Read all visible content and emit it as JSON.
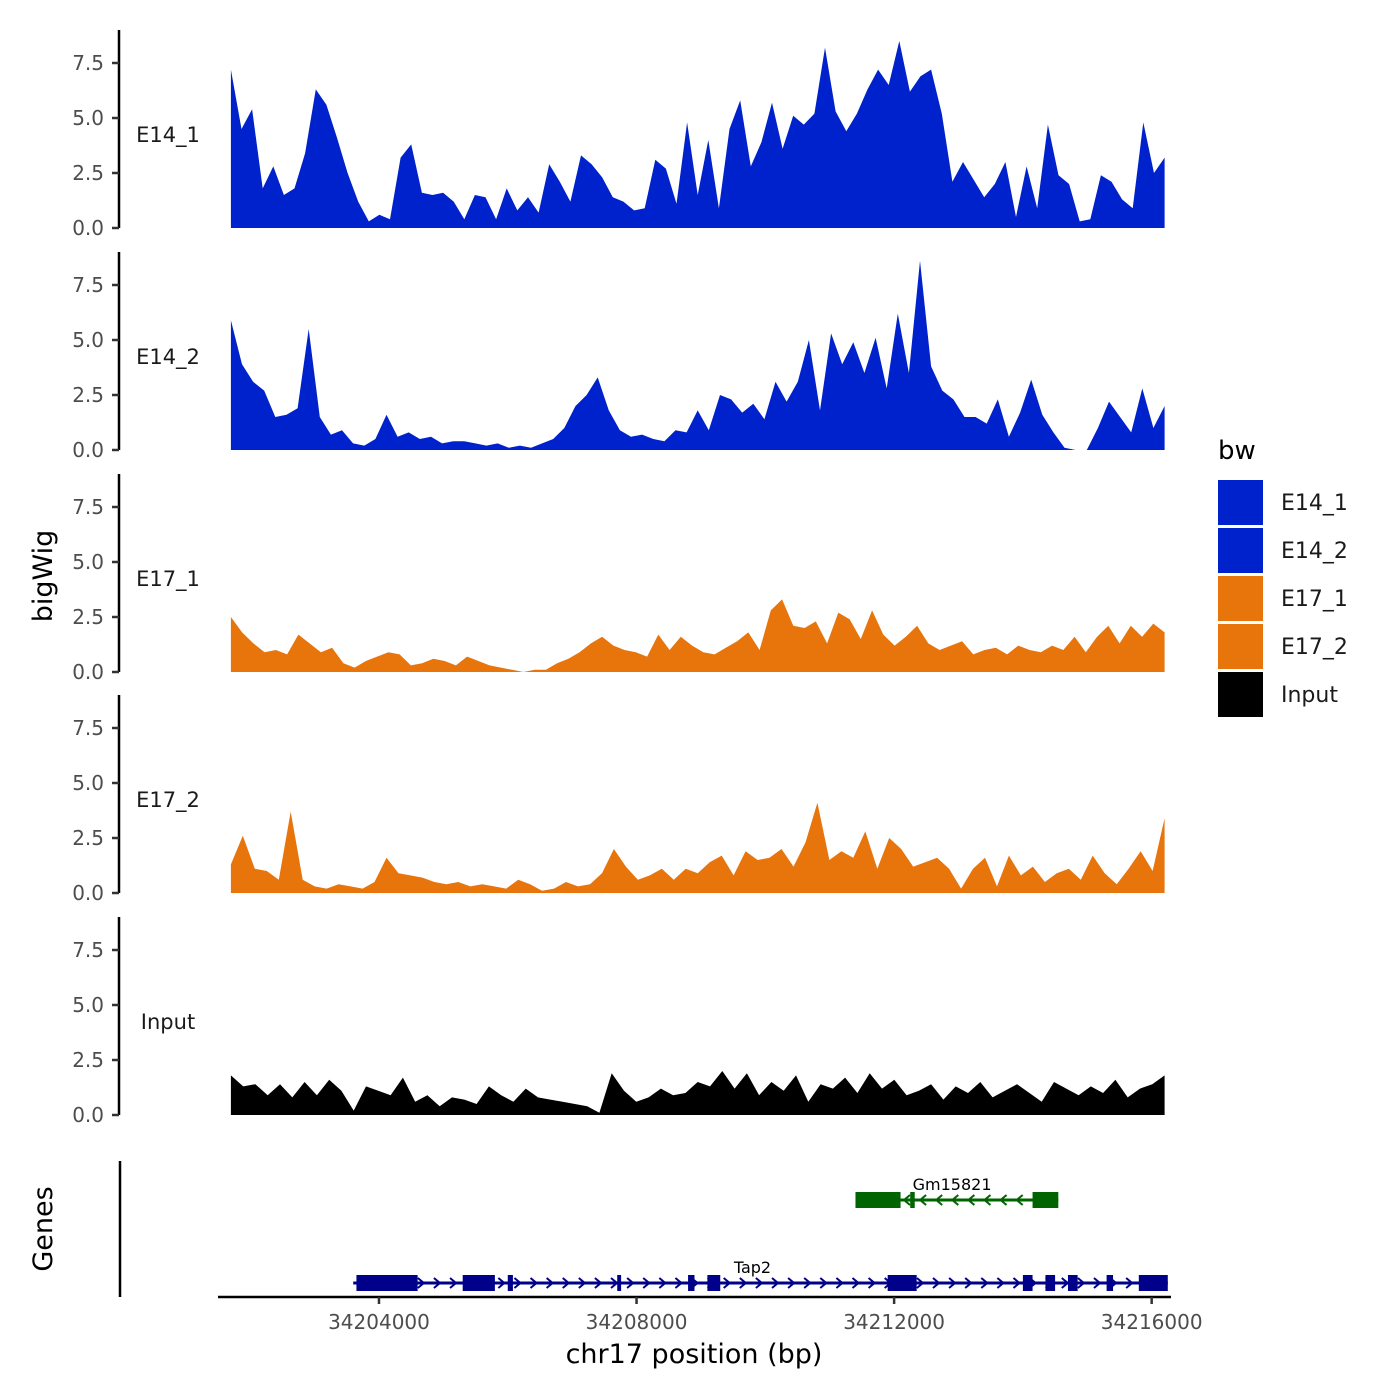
{
  "chart_data": {
    "type": "area",
    "title": "",
    "ylabel": "bigWig",
    "xlabel": "chr17 position (bp)",
    "genes_label": "Genes",
    "xlim": [
      34201500,
      34216300
    ],
    "ylim": [
      0,
      9
    ],
    "x_ticks": [
      34204000,
      34208000,
      34212000,
      34216000
    ],
    "x_tick_labels": [
      "34204000",
      "34208000",
      "34212000",
      "34216000"
    ],
    "y_ticks": [
      0,
      2.5,
      5,
      7.5
    ],
    "y_tick_labels": [
      "0.0",
      "2.5",
      "5.0",
      "7.5"
    ],
    "legend": {
      "title": "bw",
      "position": "right",
      "entries": [
        {
          "label": "E14_1",
          "color": "#0022CC"
        },
        {
          "label": "E14_2",
          "color": "#0022CC"
        },
        {
          "label": "E17_1",
          "color": "#E8740C"
        },
        {
          "label": "E17_2",
          "color": "#E8740C"
        },
        {
          "label": "Input",
          "color": "#000000"
        }
      ]
    },
    "x_start": 34201700,
    "x_step": 200,
    "series": [
      {
        "name": "E14_1",
        "color": "#0022CC",
        "values": [
          7.2,
          4.5,
          5.4,
          1.8,
          2.8,
          1.5,
          1.8,
          3.4,
          6.3,
          5.6,
          4.1,
          2.5,
          1.2,
          0.3,
          0.6,
          0.4,
          3.2,
          3.8,
          1.6,
          1.5,
          1.6,
          1.2,
          0.4,
          1.5,
          1.4,
          0.4,
          1.8,
          0.8,
          1.4,
          0.7,
          2.9,
          2.1,
          1.2,
          3.3,
          2.9,
          2.3,
          1.4,
          1.2,
          0.8,
          0.9,
          3.1,
          2.7,
          1.1,
          4.8,
          1.5,
          4.0,
          0.9,
          4.5,
          5.8,
          2.8,
          3.9,
          5.7,
          3.6,
          5.1,
          4.7,
          5.2,
          8.2,
          5.3,
          4.4,
          5.2,
          6.3,
          7.2,
          6.5,
          8.5,
          6.2,
          6.9,
          7.2,
          5.2,
          2.1,
          3.0,
          2.2,
          1.4,
          2.0,
          3.0,
          0.5,
          2.8,
          0.9,
          4.7,
          2.4,
          2.0,
          0.3,
          0.4,
          2.4,
          2.1,
          1.3,
          0.9,
          4.8,
          2.5,
          3.2
        ]
      },
      {
        "name": "E14_2",
        "color": "#0022CC",
        "values": [
          5.9,
          3.9,
          3.1,
          2.7,
          1.5,
          1.6,
          1.9,
          5.5,
          1.5,
          0.7,
          0.9,
          0.3,
          0.2,
          0.5,
          1.6,
          0.6,
          0.8,
          0.5,
          0.6,
          0.3,
          0.4,
          0.4,
          0.3,
          0.2,
          0.3,
          0.1,
          0.2,
          0.1,
          0.3,
          0.5,
          1.0,
          2.0,
          2.5,
          3.3,
          1.8,
          0.9,
          0.6,
          0.7,
          0.5,
          0.4,
          0.9,
          0.8,
          1.8,
          0.9,
          2.5,
          2.3,
          1.7,
          2.1,
          1.4,
          3.1,
          2.2,
          3.1,
          5.0,
          1.8,
          5.3,
          3.9,
          4.9,
          3.5,
          5.1,
          2.8,
          6.2,
          3.5,
          8.6,
          3.8,
          2.7,
          2.3,
          1.5,
          1.5,
          1.2,
          2.3,
          0.6,
          1.7,
          3.2,
          1.6,
          0.8,
          0.1,
          0.0,
          0.0,
          1.0,
          2.2,
          1.5,
          0.8,
          2.8,
          1.0,
          2.0
        ]
      },
      {
        "name": "E17_1",
        "color": "#E8740C",
        "values": [
          2.5,
          1.8,
          1.3,
          0.9,
          1.0,
          0.8,
          1.7,
          1.3,
          0.9,
          1.1,
          0.4,
          0.2,
          0.5,
          0.7,
          0.9,
          0.8,
          0.3,
          0.4,
          0.6,
          0.5,
          0.3,
          0.7,
          0.5,
          0.3,
          0.2,
          0.1,
          0.0,
          0.1,
          0.1,
          0.4,
          0.6,
          0.9,
          1.3,
          1.6,
          1.2,
          1.0,
          0.9,
          0.7,
          1.7,
          1.0,
          1.6,
          1.2,
          0.9,
          0.8,
          1.1,
          1.4,
          1.8,
          1.0,
          2.8,
          3.3,
          2.1,
          2.0,
          2.3,
          1.3,
          2.7,
          2.4,
          1.5,
          2.8,
          1.7,
          1.2,
          1.6,
          2.1,
          1.3,
          1.0,
          1.2,
          1.4,
          0.8,
          1.0,
          1.1,
          0.8,
          1.2,
          1.0,
          0.9,
          1.2,
          1.0,
          1.6,
          0.9,
          1.6,
          2.1,
          1.3,
          2.1,
          1.6,
          2.2,
          1.8
        ]
      },
      {
        "name": "E17_2",
        "color": "#E8740C",
        "values": [
          1.3,
          2.6,
          1.1,
          1.0,
          0.6,
          3.7,
          0.6,
          0.3,
          0.2,
          0.4,
          0.3,
          0.2,
          0.5,
          1.6,
          0.9,
          0.8,
          0.7,
          0.5,
          0.4,
          0.5,
          0.3,
          0.4,
          0.3,
          0.2,
          0.6,
          0.4,
          0.1,
          0.2,
          0.5,
          0.3,
          0.4,
          0.9,
          2.0,
          1.2,
          0.6,
          0.8,
          1.1,
          0.6,
          1.1,
          0.9,
          1.4,
          1.7,
          0.8,
          1.9,
          1.5,
          1.6,
          2.0,
          1.2,
          2.3,
          4.1,
          1.5,
          1.9,
          1.6,
          2.8,
          1.1,
          2.5,
          2.0,
          1.2,
          1.4,
          1.6,
          1.1,
          0.2,
          1.1,
          1.6,
          0.3,
          1.7,
          0.8,
          1.2,
          0.5,
          0.9,
          1.1,
          0.6,
          1.7,
          0.9,
          0.4,
          1.1,
          1.9,
          1.0,
          3.4
        ]
      },
      {
        "name": "Input",
        "color": "#000000",
        "values": [
          1.8,
          1.3,
          1.4,
          0.9,
          1.4,
          0.8,
          1.5,
          0.9,
          1.6,
          1.1,
          0.2,
          1.3,
          1.1,
          0.9,
          1.7,
          0.6,
          0.9,
          0.4,
          0.8,
          0.7,
          0.5,
          1.3,
          0.9,
          0.6,
          1.2,
          0.8,
          0.7,
          0.6,
          0.5,
          0.4,
          0.1,
          1.9,
          1.1,
          0.6,
          0.8,
          1.2,
          0.9,
          1.0,
          1.5,
          1.3,
          2.0,
          1.2,
          1.9,
          0.9,
          1.5,
          1.1,
          1.8,
          0.6,
          1.4,
          1.2,
          1.7,
          1.0,
          1.9,
          1.2,
          1.6,
          0.9,
          1.1,
          1.4,
          0.7,
          1.3,
          1.0,
          1.5,
          0.8,
          1.1,
          1.4,
          1.0,
          0.6,
          1.5,
          1.2,
          0.9,
          1.3,
          1.0,
          1.6,
          0.8,
          1.2,
          1.4,
          1.8
        ]
      }
    ],
    "genes": [
      {
        "name": "Gm15821",
        "strand": "-",
        "color": "#006400",
        "start": 34211400,
        "end": 34214550,
        "exons": [
          [
            34211400,
            34212100
          ],
          [
            34212250,
            34212320
          ],
          [
            34214150,
            34214550
          ]
        ],
        "label_position": 34212900
      },
      {
        "name": "Tap2",
        "strand": "+",
        "color": "#00008B",
        "start": 34203600,
        "end": 34216250,
        "exons": [
          [
            34203650,
            34204600
          ],
          [
            34205300,
            34205800
          ],
          [
            34206000,
            34206080
          ],
          [
            34207700,
            34207760
          ],
          [
            34208800,
            34208900
          ],
          [
            34209100,
            34209300
          ],
          [
            34211900,
            34212350
          ],
          [
            34214000,
            34214150
          ],
          [
            34214350,
            34214500
          ],
          [
            34214700,
            34214850
          ],
          [
            34215300,
            34215400
          ],
          [
            34215800,
            34216250
          ]
        ],
        "label_position": 34209800
      }
    ]
  }
}
